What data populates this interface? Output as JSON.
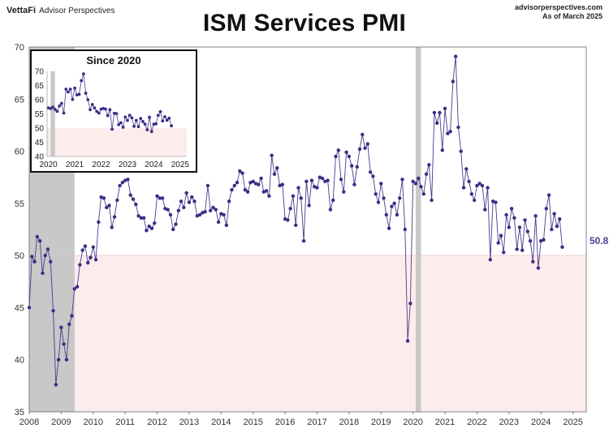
{
  "header": {
    "brand_logo": "VettaFi",
    "brand_sub": "Advisor Perspectives",
    "site": "advisorperspectives.com",
    "asof": "As of March 2025"
  },
  "chart_data": {
    "type": "line",
    "title": "ISM Services PMI",
    "xlabel": "",
    "ylabel": "",
    "ylim": [
      35,
      70
    ],
    "yticks": [
      35,
      40,
      45,
      50,
      55,
      60,
      65,
      70
    ],
    "xlim": [
      "2008-01",
      "2025-06"
    ],
    "xticks": [
      "2008",
      "2009",
      "2010",
      "2011",
      "2012",
      "2013",
      "2014",
      "2015",
      "2016",
      "2017",
      "2018",
      "2019",
      "2020",
      "2021",
      "2022",
      "2023",
      "2024",
      "2025"
    ],
    "threshold": 50,
    "threshold_fill": "#fdecec",
    "recessions": [
      [
        "2008-01",
        "2009-06"
      ],
      [
        "2020-02",
        "2020-04"
      ]
    ],
    "recession_color": "#c8c8c8",
    "line_color": "#4a3a8c",
    "marker_color": "#3b2d86",
    "last_value_label": "50.8",
    "grid": false,
    "start": "2008-01",
    "values": [
      45.0,
      49.9,
      49.4,
      51.8,
      51.4,
      48.3,
      50.0,
      50.6,
      49.4,
      44.7,
      37.6,
      40.0,
      43.1,
      41.5,
      40.0,
      43.4,
      44.2,
      46.8,
      47.0,
      49.1,
      50.5,
      50.9,
      49.3,
      49.8,
      50.8,
      49.6,
      53.2,
      55.6,
      55.5,
      54.6,
      54.8,
      52.7,
      53.7,
      55.3,
      56.7,
      57.0,
      57.2,
      57.3,
      55.8,
      55.4,
      54.9,
      53.8,
      53.6,
      53.6,
      52.4,
      52.8,
      52.6,
      53.1,
      55.7,
      55.5,
      55.5,
      54.5,
      54.4,
      53.9,
      52.5,
      53.0,
      54.3,
      55.2,
      54.6,
      56.0,
      55.1,
      55.6,
      55.2,
      53.8,
      53.9,
      54.1,
      54.2,
      56.7,
      54.3,
      54.6,
      54.4,
      53.2,
      54.0,
      53.9,
      52.9,
      55.2,
      56.3,
      56.7,
      57.0,
      58.1,
      57.9,
      56.3,
      56.1,
      57.0,
      57.1,
      56.9,
      56.8,
      57.4,
      56.1,
      56.2,
      55.7,
      59.6,
      57.8,
      58.4,
      56.7,
      56.8,
      53.5,
      53.4,
      54.5,
      55.7,
      52.9,
      56.5,
      55.5,
      51.4,
      57.1,
      54.8,
      57.2,
      56.6,
      56.5,
      57.5,
      57.4,
      57.1,
      57.2,
      54.4,
      55.3,
      59.5,
      60.1,
      57.3,
      56.1,
      59.9,
      59.5,
      58.6,
      56.8,
      58.5,
      60.2,
      61.6,
      60.3,
      60.7,
      58.0,
      57.6,
      55.9,
      55.1,
      56.9,
      55.5,
      53.9,
      52.6,
      54.7,
      55.0,
      53.9,
      55.5,
      57.3,
      52.5,
      41.8,
      45.4,
      57.1,
      56.9,
      57.4,
      56.6,
      55.9,
      57.8,
      58.7,
      55.3,
      63.7,
      62.7,
      63.7,
      60.1,
      64.1,
      61.7,
      61.9,
      66.7,
      69.1,
      62.3,
      60.0,
      56.5,
      58.3,
      57.1,
      55.9,
      55.3,
      56.7,
      56.9,
      56.7,
      54.4,
      56.5,
      49.6,
      55.2,
      55.1,
      51.2,
      51.9,
      50.3,
      53.9,
      52.7,
      54.5,
      53.6,
      50.6,
      52.7,
      50.5,
      53.4,
      52.3,
      51.4,
      49.4,
      53.8,
      48.8,
      51.4,
      51.5,
      54.5,
      55.8,
      52.5,
      54.0,
      52.8,
      53.5,
      50.8
    ]
  }
}
